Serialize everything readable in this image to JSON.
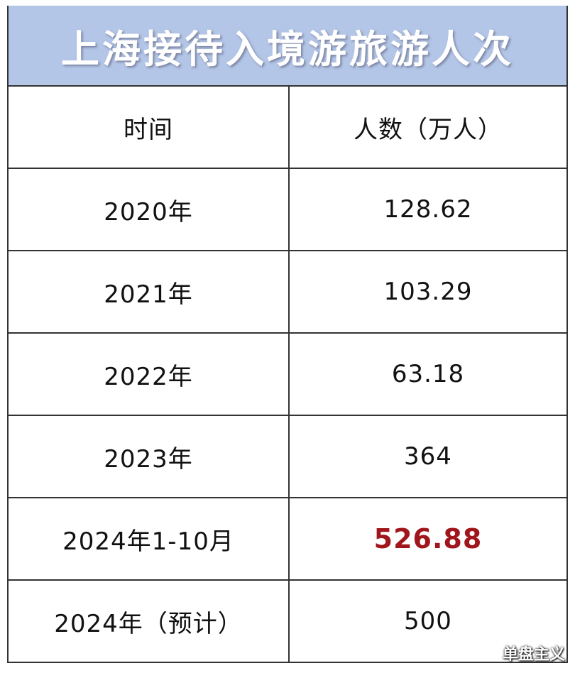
{
  "header": {
    "title": "上海接待入境游旅游人次"
  },
  "table": {
    "columns": [
      "时间",
      "人数（万人）"
    ],
    "rows": [
      [
        "2020年",
        "128.62"
      ],
      [
        "2021年",
        "103.29"
      ],
      [
        "2022年",
        "63.18"
      ],
      [
        "2023年",
        "364"
      ],
      [
        "2024年1-10月",
        "526.88"
      ],
      [
        "2024年（预计）",
        "500"
      ]
    ]
  },
  "watermark": "单盘主义"
}
